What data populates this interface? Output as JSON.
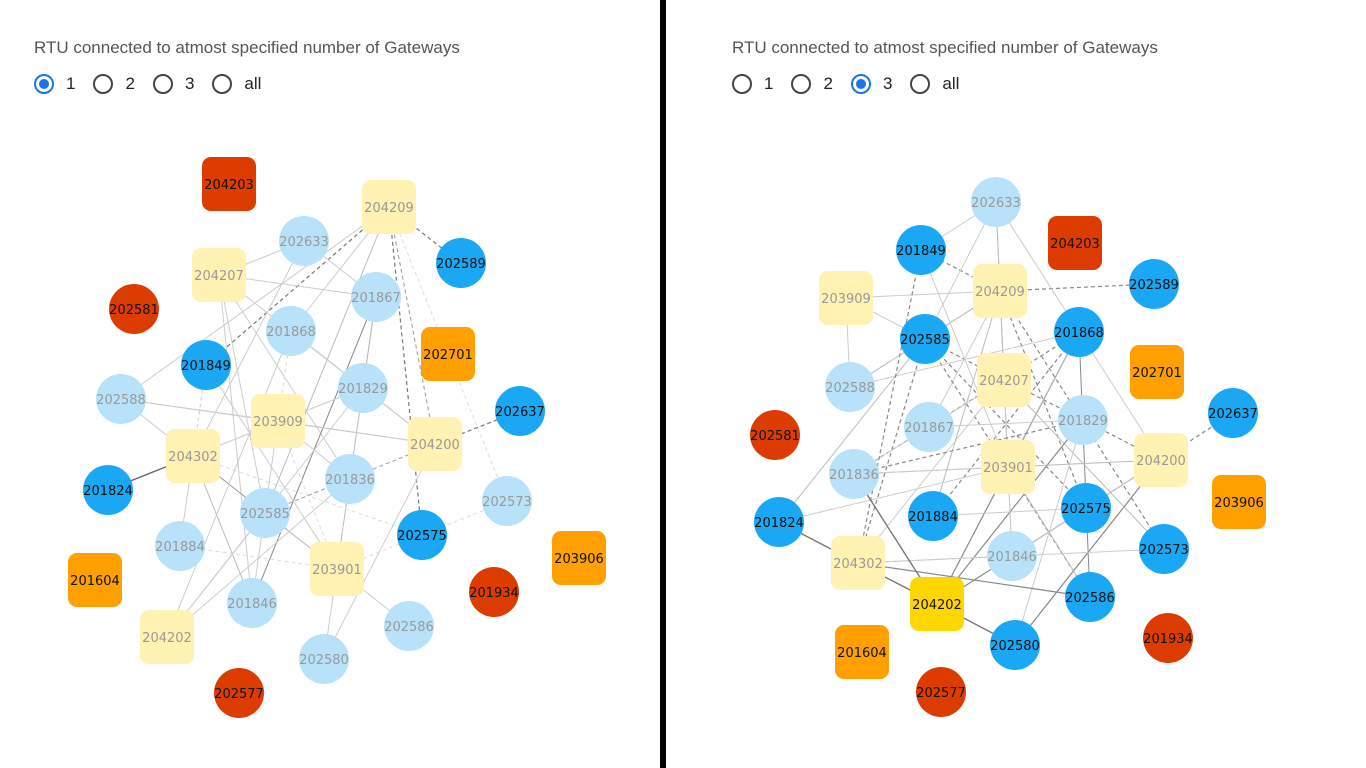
{
  "colors": {
    "rtu": "#1aa8f5",
    "rtu_faded": "#b8e2f9",
    "gateway": "#fff2b3",
    "gateway_highlight": "#ffd700",
    "isolated_orange": "#ff9f00",
    "isolated_red": "#dd3c00",
    "radio_accent": "#1a73e8",
    "text_dark": "#111111",
    "text_faded": "#999999"
  },
  "panels": [
    {
      "id": "left",
      "title": "RTU connected to atmost specified number of Gateways",
      "radio_options": [
        {
          "label": "1",
          "checked": true
        },
        {
          "label": "2",
          "checked": false
        },
        {
          "label": "3",
          "checked": false
        },
        {
          "label": "all",
          "checked": false
        }
      ],
      "nodes": [
        {
          "label": "204203",
          "shape": "square",
          "style": "red"
        },
        {
          "label": "204209",
          "shape": "square",
          "style": "gateway"
        },
        {
          "label": "202633",
          "shape": "circle",
          "style": "faded"
        },
        {
          "label": "202589",
          "shape": "circle",
          "style": "blue"
        },
        {
          "label": "204207",
          "shape": "square",
          "style": "gateway"
        },
        {
          "label": "201867",
          "shape": "circle",
          "style": "faded"
        },
        {
          "label": "202581",
          "shape": "circle",
          "style": "red"
        },
        {
          "label": "201868",
          "shape": "circle",
          "style": "faded"
        },
        {
          "label": "202701",
          "shape": "square",
          "style": "orange"
        },
        {
          "label": "201849",
          "shape": "circle",
          "style": "blue"
        },
        {
          "label": "201829",
          "shape": "circle",
          "style": "faded"
        },
        {
          "label": "202588",
          "shape": "circle",
          "style": "faded"
        },
        {
          "label": "203909",
          "shape": "square",
          "style": "gateway"
        },
        {
          "label": "202637",
          "shape": "circle",
          "style": "blue"
        },
        {
          "label": "204200",
          "shape": "square",
          "style": "gateway"
        },
        {
          "label": "204302",
          "shape": "square",
          "style": "gateway"
        },
        {
          "label": "201836",
          "shape": "circle",
          "style": "faded"
        },
        {
          "label": "201824",
          "shape": "circle",
          "style": "blue"
        },
        {
          "label": "202573",
          "shape": "circle",
          "style": "faded"
        },
        {
          "label": "202585",
          "shape": "circle",
          "style": "faded"
        },
        {
          "label": "202575",
          "shape": "circle",
          "style": "blue"
        },
        {
          "label": "201884",
          "shape": "circle",
          "style": "faded"
        },
        {
          "label": "203906",
          "shape": "square",
          "style": "orange"
        },
        {
          "label": "201604",
          "shape": "square",
          "style": "orange"
        },
        {
          "label": "203901",
          "shape": "square",
          "style": "gateway"
        },
        {
          "label": "201934",
          "shape": "circle",
          "style": "red"
        },
        {
          "label": "201846",
          "shape": "circle",
          "style": "faded"
        },
        {
          "label": "202586",
          "shape": "circle",
          "style": "faded"
        },
        {
          "label": "204202",
          "shape": "square",
          "style": "gateway"
        },
        {
          "label": "202580",
          "shape": "circle",
          "style": "faded"
        },
        {
          "label": "202577",
          "shape": "circle",
          "style": "red"
        }
      ]
    },
    {
      "id": "right",
      "title": "RTU connected to atmost specified number of Gateways",
      "radio_options": [
        {
          "label": "1",
          "checked": false
        },
        {
          "label": "2",
          "checked": false
        },
        {
          "label": "3",
          "checked": true
        },
        {
          "label": "all",
          "checked": false
        }
      ],
      "nodes": [
        {
          "label": "202633",
          "shape": "circle",
          "style": "faded"
        },
        {
          "label": "201849",
          "shape": "circle",
          "style": "blue"
        },
        {
          "label": "204203",
          "shape": "square",
          "style": "red"
        },
        {
          "label": "202589",
          "shape": "circle",
          "style": "blue"
        },
        {
          "label": "203909",
          "shape": "square",
          "style": "gateway"
        },
        {
          "label": "204209",
          "shape": "square",
          "style": "gateway"
        },
        {
          "label": "202585",
          "shape": "circle",
          "style": "blue"
        },
        {
          "label": "201868",
          "shape": "circle",
          "style": "blue"
        },
        {
          "label": "202701",
          "shape": "square",
          "style": "orange"
        },
        {
          "label": "202588",
          "shape": "circle",
          "style": "faded"
        },
        {
          "label": "204207",
          "shape": "square",
          "style": "gateway"
        },
        {
          "label": "202637",
          "shape": "circle",
          "style": "blue"
        },
        {
          "label": "202581",
          "shape": "circle",
          "style": "red"
        },
        {
          "label": "201867",
          "shape": "circle",
          "style": "faded"
        },
        {
          "label": "201829",
          "shape": "circle",
          "style": "faded"
        },
        {
          "label": "203901",
          "shape": "square",
          "style": "gateway"
        },
        {
          "label": "204200",
          "shape": "square",
          "style": "gateway"
        },
        {
          "label": "201836",
          "shape": "circle",
          "style": "faded"
        },
        {
          "label": "203906",
          "shape": "square",
          "style": "orange"
        },
        {
          "label": "201884",
          "shape": "circle",
          "style": "blue"
        },
        {
          "label": "202575",
          "shape": "circle",
          "style": "blue"
        },
        {
          "label": "201824",
          "shape": "circle",
          "style": "blue"
        },
        {
          "label": "202573",
          "shape": "circle",
          "style": "blue"
        },
        {
          "label": "201846",
          "shape": "circle",
          "style": "faded"
        },
        {
          "label": "204302",
          "shape": "square",
          "style": "gateway"
        },
        {
          "label": "204202",
          "shape": "square",
          "style": "gateway_highlight"
        },
        {
          "label": "202586",
          "shape": "circle",
          "style": "blue"
        },
        {
          "label": "201934",
          "shape": "circle",
          "style": "red"
        },
        {
          "label": "201604",
          "shape": "square",
          "style": "orange"
        },
        {
          "label": "202580",
          "shape": "circle",
          "style": "blue"
        },
        {
          "label": "202577",
          "shape": "circle",
          "style": "red"
        }
      ]
    }
  ]
}
